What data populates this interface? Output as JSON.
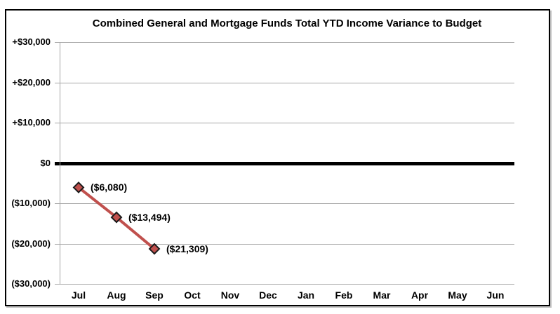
{
  "chart_data": {
    "type": "line",
    "title": "Combined General and Mortgage Funds Total YTD Income Variance to Budget",
    "categories": [
      "Jul",
      "Aug",
      "Sep",
      "Oct",
      "Nov",
      "Dec",
      "Jan",
      "Feb",
      "Mar",
      "Apr",
      "May",
      "Jun"
    ],
    "ylim": [
      -30000,
      30000
    ],
    "yticks": [
      {
        "value": 30000,
        "label": "+$30,000"
      },
      {
        "value": 20000,
        "label": "+$20,000"
      },
      {
        "value": 10000,
        "label": "+$10,000"
      },
      {
        "value": 0,
        "label": "$0"
      },
      {
        "value": -10000,
        "label": "($10,000)"
      },
      {
        "value": -20000,
        "label": "($20,000)"
      },
      {
        "value": -30000,
        "label": "($30,000)"
      }
    ],
    "series": [
      {
        "color": "#C0504D",
        "marker": "diamond",
        "marker_fill": "#C0504D",
        "marker_border": "#1a1a1a",
        "points": [
          {
            "category": "Jul",
            "value": -6080,
            "label": "($6,080)"
          },
          {
            "category": "Aug",
            "value": -13494,
            "label": "($13,494)"
          },
          {
            "category": "Sep",
            "value": -21309,
            "label": "($21,309)"
          }
        ]
      }
    ],
    "zero_line": {
      "value": 0,
      "color": "#000000"
    },
    "grid": true,
    "gridline_color": "#a6a6a6",
    "legend": "none",
    "background": "#ffffff",
    "border_color": "#000000"
  }
}
